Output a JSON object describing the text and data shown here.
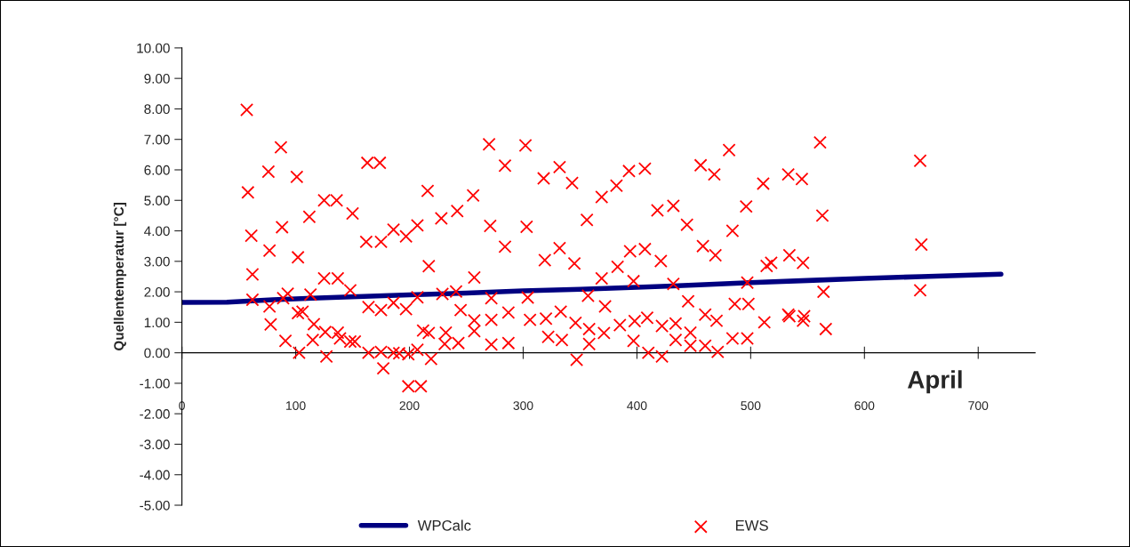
{
  "chart_data": {
    "type": "scatter",
    "ylabel": "Quellentemperatur [°C]",
    "annotations": [
      "April"
    ],
    "xlim": [
      0,
      750
    ],
    "xticks": [
      0,
      100,
      200,
      300,
      400,
      500,
      600,
      700
    ],
    "ylim": [
      -5,
      10
    ],
    "yticks": [
      {
        "value": -5,
        "label": "-5.00"
      },
      {
        "value": -4,
        "label": "-4.00"
      },
      {
        "value": -3,
        "label": "-3.00"
      },
      {
        "value": -2,
        "label": "-2.00"
      },
      {
        "value": -1,
        "label": "-1.00"
      },
      {
        "value": 0,
        "label": "0.00"
      },
      {
        "value": 1,
        "label": "1.00"
      },
      {
        "value": 2,
        "label": "2.00"
      },
      {
        "value": 3,
        "label": "3.00"
      },
      {
        "value": 4,
        "label": "4.00"
      },
      {
        "value": 5,
        "label": "5.00"
      },
      {
        "value": 6,
        "label": "6.00"
      },
      {
        "value": 7,
        "label": "7.00"
      },
      {
        "value": 8,
        "label": "8.00"
      },
      {
        "value": 9,
        "label": "9.00"
      },
      {
        "value": 10,
        "label": "10.00"
      }
    ],
    "legend": "bottom",
    "series": [
      {
        "name": "WPCalc",
        "type": "line",
        "color": "#000080",
        "marker": "none",
        "line_style": "solid",
        "x": [
          0,
          40,
          80,
          120,
          160,
          200,
          250,
          300,
          350,
          400,
          450,
          500,
          550,
          600,
          650,
          720
        ],
        "values": [
          1.65,
          1.66,
          1.74,
          1.8,
          1.85,
          1.9,
          1.96,
          2.03,
          2.08,
          2.15,
          2.22,
          2.3,
          2.37,
          2.44,
          2.5,
          2.58
        ]
      },
      {
        "name": "EWS",
        "type": "scatter",
        "color": "#ff0000",
        "marker": "cross",
        "x": [
          57,
          87,
          76,
          101,
          58,
          125,
          136,
          150,
          112,
          88,
          61,
          77,
          102,
          62,
          125,
          137,
          148,
          62,
          89,
          93,
          113,
          77,
          102,
          106,
          116,
          78,
          126,
          137,
          139,
          148,
          152,
          115,
          91,
          103,
          127,
          270,
          302,
          284,
          163,
          174,
          216,
          256,
          242,
          228,
          271,
          303,
          207,
          186,
          197,
          162,
          175,
          284,
          217,
          257,
          207,
          229,
          241,
          272,
          164,
          175,
          186,
          197,
          245,
          287,
          257,
          272,
          212,
          217,
          232,
          257,
          231,
          243,
          272,
          287,
          164,
          175,
          186,
          191,
          199,
          207,
          177,
          219,
          199,
          210,
          332,
          318,
          343,
          393,
          407,
          382,
          369,
          356,
          418,
          432,
          444,
          332,
          319,
          345,
          394,
          407,
          383,
          421,
          369,
          397,
          432,
          304,
          357,
          445,
          372,
          306,
          320,
          333,
          346,
          358,
          371,
          385,
          398,
          409,
          422,
          434,
          447,
          322,
          334,
          358,
          397,
          434,
          447,
          347,
          410,
          422,
          460,
          471,
          484,
          497,
          456,
          458,
          460,
          468,
          469,
          470,
          481,
          484,
          486,
          496,
          497,
          498,
          511,
          514,
          518,
          512,
          533,
          534,
          533,
          534,
          545,
          546,
          547,
          546,
          561,
          563,
          564,
          566,
          649,
          650,
          649
        ],
        "values": [
          7.97,
          6.74,
          5.94,
          5.77,
          5.26,
          5.0,
          5.0,
          4.57,
          4.46,
          4.12,
          3.84,
          3.35,
          3.13,
          2.57,
          2.44,
          2.44,
          2.05,
          1.74,
          1.79,
          1.94,
          1.91,
          1.52,
          1.3,
          1.35,
          0.94,
          0.93,
          0.68,
          0.66,
          0.47,
          0.37,
          0.37,
          0.42,
          0.39,
          0.0,
          -0.12,
          6.84,
          6.8,
          6.14,
          6.23,
          6.23,
          5.31,
          5.16,
          4.65,
          4.41,
          4.16,
          4.13,
          4.18,
          4.04,
          3.82,
          3.64,
          3.64,
          3.48,
          2.84,
          2.47,
          1.82,
          1.93,
          2.01,
          1.79,
          1.5,
          1.4,
          1.64,
          1.43,
          1.4,
          1.32,
          1.06,
          1.08,
          0.73,
          0.65,
          0.66,
          0.71,
          0.29,
          0.32,
          0.27,
          0.32,
          0.0,
          0.03,
          0.0,
          -0.02,
          -0.05,
          0.1,
          -0.51,
          -0.2,
          -1.1,
          -1.1,
          6.09,
          5.72,
          5.57,
          5.96,
          6.04,
          5.48,
          5.11,
          4.36,
          4.67,
          4.82,
          4.2,
          3.43,
          3.04,
          2.93,
          3.33,
          3.4,
          2.82,
          3.01,
          2.44,
          2.35,
          2.26,
          1.81,
          1.87,
          1.69,
          1.52,
          1.08,
          1.12,
          1.35,
          0.98,
          0.78,
          0.65,
          0.91,
          1.04,
          1.15,
          0.88,
          0.96,
          0.66,
          0.52,
          0.42,
          0.29,
          0.39,
          0.42,
          0.23,
          -0.23,
          0.0,
          -0.12,
          0.23,
          0.03,
          0.47,
          0.47,
          6.15,
          3.5,
          1.25,
          5.85,
          3.2,
          1.05,
          6.65,
          4.0,
          1.6,
          4.8,
          2.3,
          1.6,
          5.55,
          2.85,
          2.95,
          1.0,
          5.85,
          3.2,
          1.25,
          1.2,
          5.7,
          2.95,
          1.2,
          1.05,
          6.9,
          4.5,
          2.0,
          0.78,
          6.3,
          3.55,
          2.05
        ]
      }
    ]
  }
}
